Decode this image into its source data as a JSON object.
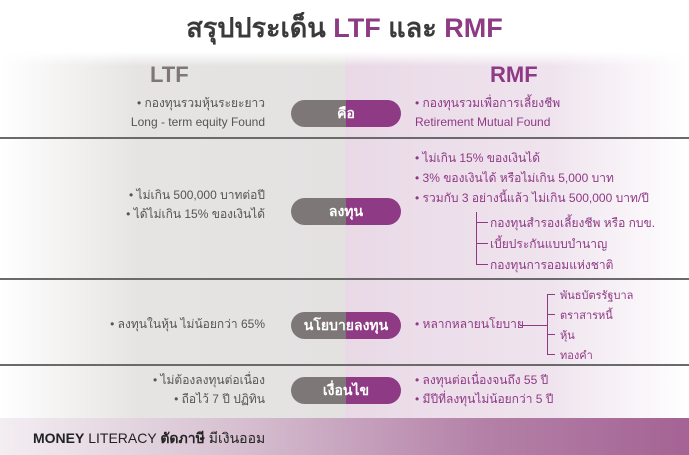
{
  "title": {
    "part1": "สรุปประเด็น",
    "ltf": "LTF",
    "and": "และ",
    "rmf": "RMF"
  },
  "columns": {
    "left": "LTF",
    "right": "RMF"
  },
  "rows": [
    {
      "label": "คือ",
      "left": [
        "• กองทุนรวมหุ้นระยะยาว",
        "Long - term equity Found"
      ],
      "right": [
        "• กองทุนรวมเพื่อการเลี้ยงชีพ",
        "Retirement Mutual Found"
      ]
    },
    {
      "label": "ลงทุน",
      "left": [
        "• ไม่เกิน 500,000 บาทต่อปี",
        "• ได้ไม่เกิน 15% ของเงินได้"
      ],
      "right": [
        "• ไม่เกิน 15% ของเงินได้",
        "• 3% ของเงินได้ หรือไม่เกิน 5,000 บาท",
        "• รวมกับ 3 อย่างนี้แล้ว ไม่เกิน 500,000 บาท/ปี"
      ],
      "right_sub": [
        "กองทุนสำรองเลี้ยงชีพ หรือ กบข.",
        "เบี้ยประกันแบบบำนาญ",
        "กองทุนการออมแห่งชาติ"
      ]
    },
    {
      "label": "นโยบายลงทุน",
      "left": [
        "• ลงทุนในหุ้น ไม่น้อยกว่า 65%"
      ],
      "right": [
        "• หลากหลายนโยบาย"
      ],
      "right_sub": [
        "พันธบัตรรัฐบาล",
        "ตราสารหนี้",
        "หุ้น",
        "ทองคำ"
      ]
    },
    {
      "label": "เงื่อนไข",
      "left": [
        "• ไม่ต้องลงทุนต่อเนื่อง",
        "• ถือไว้ 7 ปี ปฏิทิน"
      ],
      "right": [
        "• ลงทุนต่อเนื่องจนถึง 55 ปี",
        "• มีปีที่ลงทุนไม่น้อยกว่า 5 ปี"
      ]
    }
  ],
  "footer": {
    "money": "MONEY",
    "literacy": "LITERACY",
    "brand": "ตัดภาษี",
    "slogan": "มีเงินออม"
  },
  "colors": {
    "accent": "#8e3a85",
    "gray": "#7d7877"
  }
}
